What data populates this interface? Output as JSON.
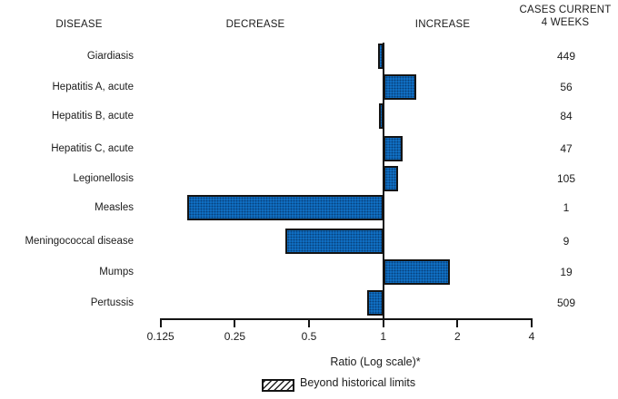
{
  "header": {
    "disease": "DISEASE",
    "decrease": "DECREASE",
    "increase": "INCREASE",
    "cases": "CASES CURRENT\n4 WEEKS"
  },
  "chart_data": {
    "type": "bar",
    "orientation": "horizontal",
    "scale": "log2",
    "title": "",
    "xlabel": "Ratio (Log scale)*",
    "x_ticks": [
      0.125,
      0.25,
      0.5,
      1,
      2,
      4
    ],
    "xlim": [
      0.125,
      4
    ],
    "grid": false,
    "categories": [
      "Giardiasis",
      "Hepatitis A, acute",
      "Hepatitis B, acute",
      "Hepatitis C, acute",
      "Legionellosis",
      "Measles",
      "Meningococcal disease",
      "Mumps",
      "Pertussis"
    ],
    "series": [
      {
        "name": "Ratio (Log scale)*",
        "values": [
          0.95,
          1.36,
          0.96,
          1.2,
          1.15,
          0.16,
          0.4,
          1.87,
          0.86
        ]
      },
      {
        "name": "Cases current 4 weeks",
        "values": [
          449,
          56,
          84,
          47,
          105,
          1,
          9,
          19,
          509
        ]
      }
    ],
    "beyond_historical_limits": [
      false,
      false,
      false,
      false,
      false,
      false,
      false,
      false,
      false
    ],
    "legend": [
      {
        "label": "Beyond historical limits",
        "style": "hatched"
      }
    ],
    "colors": {
      "bar_fill": "#1173c9",
      "bar_border": "#141414",
      "axis": "#141414",
      "text": "#1b1b1b",
      "background": "#ffffff"
    }
  }
}
